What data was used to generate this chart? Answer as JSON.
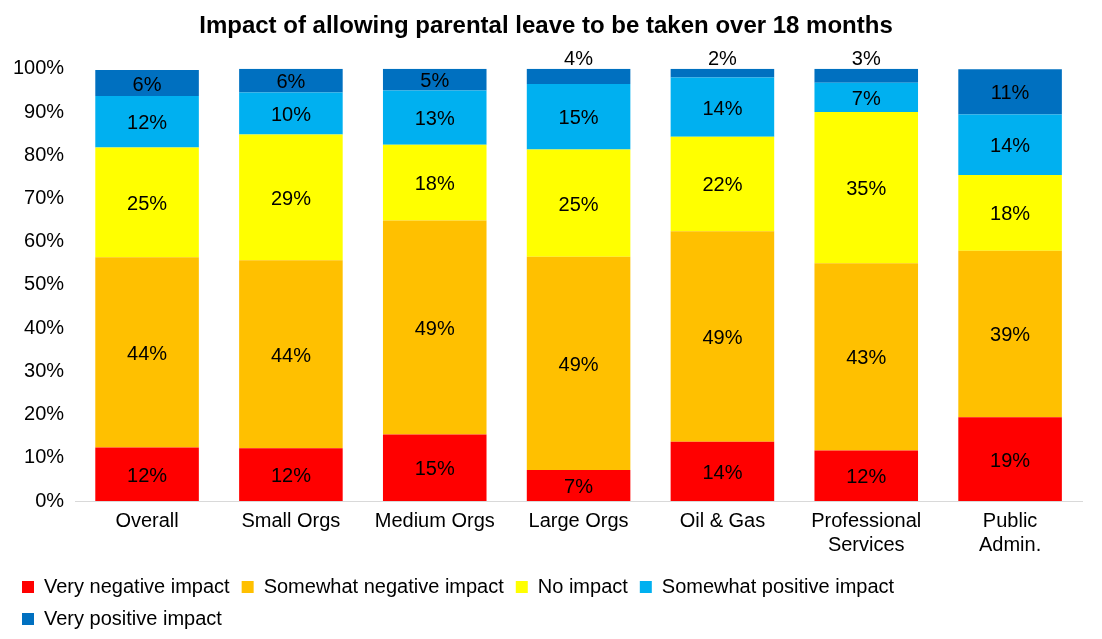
{
  "chart_data": {
    "type": "bar",
    "stacked": true,
    "title": "Impact of allowing parental leave to be taken over 18 months",
    "categories": [
      "Overall",
      "Small Orgs",
      "Medium Orgs",
      "Large Orgs",
      "Oil & Gas",
      "Professional Services",
      "Public Admin."
    ],
    "series": [
      {
        "name": "Very negative impact",
        "color": "#ff0000",
        "values": [
          12.4,
          12.2,
          15.4,
          7.2,
          13.7,
          11.7,
          19.4
        ],
        "value_labels": [
          "12%",
          "12%",
          "15%",
          "7%",
          "14%",
          "12%",
          "19%"
        ]
      },
      {
        "name": "Somewhat negative impact",
        "color": "#ffc000",
        "values": [
          44.0,
          43.5,
          49.5,
          49.3,
          48.7,
          43.3,
          38.5
        ],
        "value_labels": [
          "44%",
          "44%",
          "49%",
          "49%",
          "49%",
          "43%",
          "39%"
        ]
      },
      {
        "name": "No impact",
        "color": "#ffff00",
        "values": [
          25.4,
          29.1,
          17.5,
          24.8,
          21.9,
          35.0,
          17.5
        ],
        "value_labels": [
          "25%",
          "29%",
          "18%",
          "25%",
          "22%",
          "35%",
          "18%"
        ]
      },
      {
        "name": "Somewhat positive impact",
        "color": "#00b0f0",
        "values": [
          11.9,
          9.7,
          12.6,
          15.2,
          13.7,
          6.8,
          14.0
        ],
        "value_labels": [
          "12%",
          "10%",
          "13%",
          "15%",
          "14%",
          "7%",
          "14%"
        ]
      },
      {
        "name": "Very positive impact",
        "color": "#0070c0",
        "values": [
          6.0,
          5.5,
          5.0,
          3.5,
          2.0,
          3.2,
          10.5
        ],
        "value_labels": [
          "6%",
          "6%",
          "5%",
          "4%",
          "2%",
          "3%",
          "11%"
        ]
      }
    ],
    "ylim": [
      0,
      100
    ],
    "yticks": [
      {
        "value": 0,
        "label": "0%"
      },
      {
        "value": 10,
        "label": "10%"
      },
      {
        "value": 20,
        "label": "20%"
      },
      {
        "value": 30,
        "label": "30%"
      },
      {
        "value": 40,
        "label": "40%"
      },
      {
        "value": 50,
        "label": "50%"
      },
      {
        "value": 60,
        "label": "60%"
      },
      {
        "value": 70,
        "label": "70%"
      },
      {
        "value": 80,
        "label": "80%"
      },
      {
        "value": 90,
        "label": "90%"
      },
      {
        "value": 100,
        "label": "100%"
      }
    ],
    "grid": false,
    "legend": "bottom",
    "marker": "square"
  }
}
